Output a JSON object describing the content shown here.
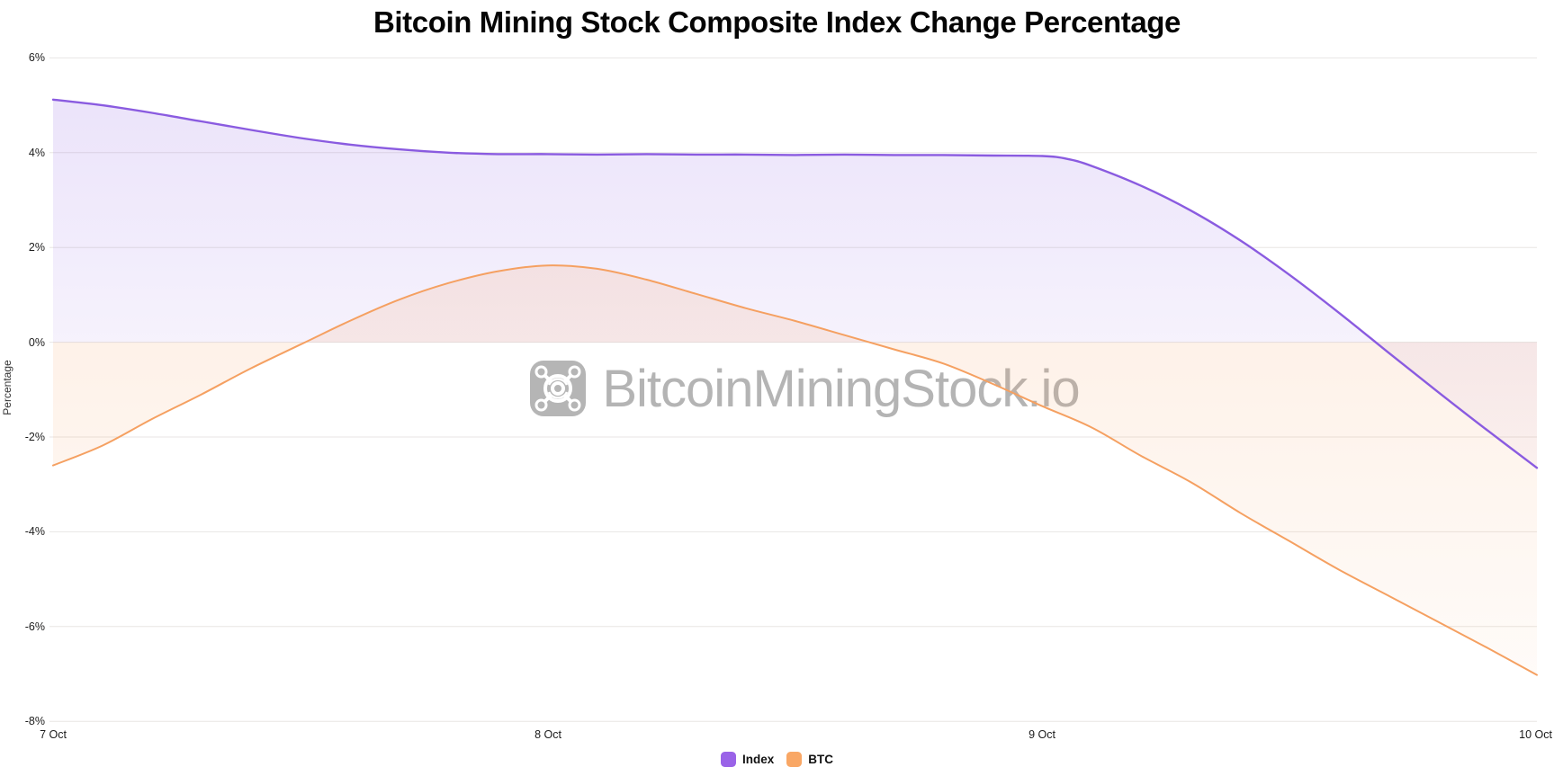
{
  "title": "Bitcoin Mining Stock Composite Index Change Percentage",
  "watermark": {
    "text": "BitcoinMiningStock.io"
  },
  "chart_data": {
    "type": "area",
    "title": "Bitcoin Mining Stock Composite Index Change Percentage",
    "xlabel": "",
    "ylabel": "Percentage",
    "ylim": [
      -8,
      6
    ],
    "grid": true,
    "legend_position": "bottom-center",
    "x_unit": "days since 7 Oct",
    "x_ticks": [
      {
        "label": "7 Oct",
        "t": 0
      },
      {
        "label": "8 Oct",
        "t": 1
      },
      {
        "label": "9 Oct",
        "t": 2
      },
      {
        "label": "10 Oct",
        "t": 3
      }
    ],
    "y_ticks": [
      {
        "label": "6%",
        "value": 6
      },
      {
        "label": "4%",
        "value": 4
      },
      {
        "label": "2%",
        "value": 2
      },
      {
        "label": "0%",
        "value": 0
      },
      {
        "label": "-2%",
        "value": -2
      },
      {
        "label": "-4%",
        "value": -4
      },
      {
        "label": "-6%",
        "value": -6
      },
      {
        "label": "-8%",
        "value": -8
      }
    ],
    "legend": [
      {
        "label": "Index",
        "color": "#9a63e8"
      },
      {
        "label": "BTC",
        "color": "#f9a765"
      }
    ],
    "series": [
      {
        "name": "Index",
        "color": "#8a5be0",
        "fill_top": "rgba(139,92,226,0.17)",
        "fill_bottom": "rgba(139,92,226,0.03)",
        "x": [
          0,
          0.1,
          0.2,
          0.3,
          0.4,
          0.5,
          0.6,
          0.7,
          0.8,
          0.9,
          1.0,
          1.1,
          1.2,
          1.3,
          1.4,
          1.5,
          1.6,
          1.7,
          1.8,
          1.9,
          2.0,
          2.05,
          2.1,
          2.2,
          2.3,
          2.4,
          2.5,
          2.6,
          2.7,
          2.8,
          2.9,
          3.0
        ],
        "values": [
          5.12,
          5.0,
          4.84,
          4.66,
          4.48,
          4.31,
          4.17,
          4.07,
          4.0,
          3.97,
          3.97,
          3.96,
          3.97,
          3.96,
          3.96,
          3.95,
          3.96,
          3.95,
          3.95,
          3.94,
          3.93,
          3.87,
          3.72,
          3.3,
          2.78,
          2.15,
          1.42,
          0.62,
          -0.22,
          -1.05,
          -1.86,
          -2.65
        ]
      },
      {
        "name": "BTC",
        "color": "#f5a061",
        "fill_top": "rgba(247,158,93,0.16)",
        "fill_bottom": "rgba(247,158,93,0.04)",
        "x": [
          0,
          0.1,
          0.2,
          0.3,
          0.4,
          0.5,
          0.6,
          0.7,
          0.8,
          0.9,
          1.0,
          1.1,
          1.2,
          1.3,
          1.4,
          1.5,
          1.6,
          1.7,
          1.8,
          1.9,
          2.0,
          2.1,
          2.2,
          2.3,
          2.4,
          2.5,
          2.6,
          2.7,
          2.8,
          2.9,
          3.0
        ],
        "values": [
          -2.6,
          -2.18,
          -1.62,
          -1.1,
          -0.55,
          -0.05,
          0.45,
          0.9,
          1.25,
          1.5,
          1.62,
          1.55,
          1.32,
          1.02,
          0.72,
          0.45,
          0.15,
          -0.15,
          -0.45,
          -0.88,
          -1.35,
          -1.8,
          -2.4,
          -2.95,
          -3.6,
          -4.2,
          -4.8,
          -5.35,
          -5.9,
          -6.45,
          -7.02
        ]
      }
    ]
  }
}
